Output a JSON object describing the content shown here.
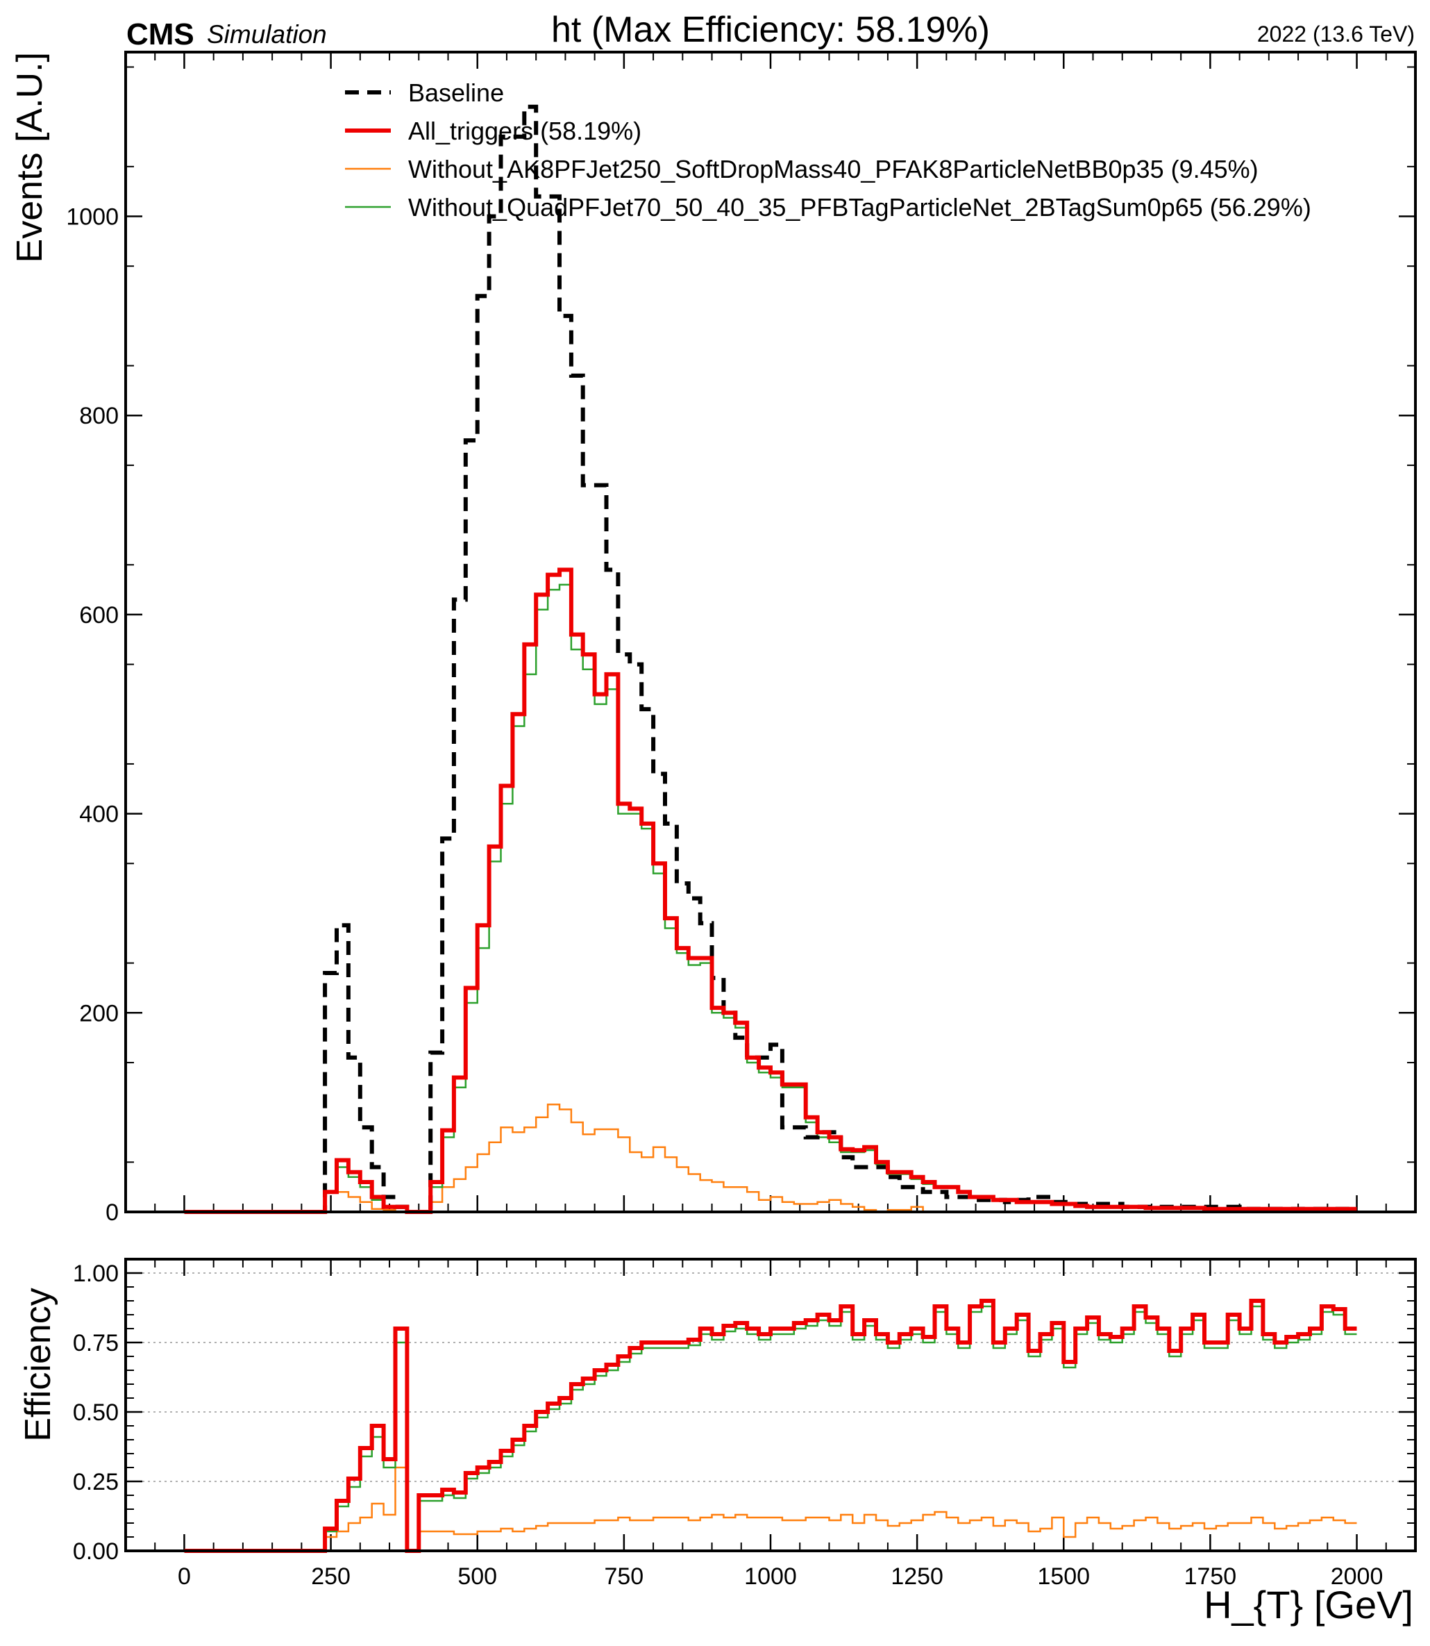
{
  "header": {
    "experiment": "CMS",
    "status": "Simulation",
    "title": "ht (Max Efficiency: 58.19%)",
    "lumi": "2022 (13.6 TeV)"
  },
  "chart_data": [
    {
      "type": "step-histogram",
      "panel": "top",
      "xlabel": "",
      "ylabel": "Events [A.U.]",
      "xlim": [
        -100,
        2100
      ],
      "ylim": [
        0,
        1165
      ],
      "yticks": [
        0,
        200,
        400,
        600,
        800,
        1000
      ],
      "legend_position": "top-center",
      "bin_edges_start": 0,
      "bin_width": 20,
      "series": [
        {
          "name": "Baseline",
          "color": "#000000",
          "style": "dashed",
          "values": [
            0,
            0,
            0,
            0,
            0,
            0,
            0,
            0,
            0,
            0,
            0,
            0,
            240,
            288,
            155,
            85,
            45,
            15,
            5,
            0,
            0,
            160,
            375,
            615,
            775,
            920,
            1000,
            1080,
            1080,
            1110,
            1020,
            1020,
            900,
            840,
            730,
            730,
            645,
            560,
            550,
            505,
            440,
            390,
            330,
            315,
            290,
            235,
            200,
            175,
            155,
            155,
            168,
            85,
            85,
            75,
            80,
            80,
            55,
            45,
            45,
            45,
            35,
            25,
            25,
            20,
            20,
            15,
            15,
            12,
            12,
            12,
            10,
            12,
            15,
            15,
            10,
            10,
            8,
            8,
            8,
            8,
            5,
            5,
            5,
            5,
            5,
            5,
            5,
            5,
            5,
            5,
            3,
            3,
            3,
            3,
            3,
            3,
            3,
            3,
            3,
            3
          ]
        },
        {
          "name": "All_triggers (58.19%)",
          "color": "#ee0000",
          "style": "solid-thick",
          "values": [
            0,
            0,
            0,
            0,
            0,
            0,
            0,
            0,
            0,
            0,
            0,
            0,
            20,
            52,
            40,
            30,
            15,
            5,
            5,
            0,
            0,
            30,
            82,
            135,
            225,
            288,
            367,
            428,
            500,
            570,
            620,
            640,
            645,
            580,
            560,
            520,
            540,
            410,
            405,
            390,
            350,
            295,
            265,
            255,
            255,
            205,
            200,
            190,
            155,
            145,
            140,
            128,
            128,
            95,
            80,
            75,
            63,
            62,
            65,
            50,
            40,
            40,
            35,
            30,
            25,
            25,
            20,
            15,
            15,
            12,
            12,
            10,
            10,
            10,
            8,
            8,
            6,
            5,
            5,
            5,
            5,
            5,
            4,
            4,
            4,
            4,
            4,
            3,
            3,
            3,
            3,
            3,
            3,
            3,
            3,
            3,
            3,
            3,
            3,
            3
          ]
        },
        {
          "name": "Without_AK8PFJet250_SoftDropMass40_PFAK8ParticleNetBB0p35 (9.45%)",
          "color": "#ff7f0e",
          "style": "solid-thin",
          "values": [
            0,
            0,
            0,
            0,
            0,
            0,
            0,
            0,
            0,
            0,
            0,
            0,
            20,
            20,
            15,
            10,
            3,
            2,
            0,
            0,
            0,
            10,
            25,
            33,
            45,
            58,
            70,
            85,
            80,
            85,
            95,
            108,
            103,
            90,
            78,
            83,
            83,
            75,
            60,
            55,
            65,
            55,
            45,
            38,
            32,
            30,
            25,
            25,
            20,
            12,
            15,
            10,
            8,
            8,
            10,
            12,
            8,
            5,
            2,
            0,
            2,
            2,
            5,
            0,
            0,
            0,
            0,
            0,
            0,
            0,
            0,
            0,
            0,
            0,
            0,
            0,
            0,
            0,
            0,
            0,
            0,
            0,
            0,
            0,
            0,
            0,
            0,
            0,
            0,
            0,
            0,
            0,
            0,
            0,
            0,
            0,
            0,
            0,
            0,
            0
          ]
        },
        {
          "name": "Without_QuadPFJet70_50_40_35_PFBTagParticleNet_2BTagSum0p65 (56.29%)",
          "color": "#2ca02c",
          "style": "solid-thin",
          "values": [
            0,
            0,
            0,
            0,
            0,
            0,
            0,
            0,
            0,
            0,
            0,
            0,
            20,
            45,
            35,
            25,
            12,
            5,
            5,
            0,
            0,
            25,
            75,
            125,
            210,
            265,
            352,
            410,
            488,
            540,
            605,
            625,
            630,
            565,
            545,
            510,
            525,
            400,
            400,
            385,
            340,
            285,
            260,
            248,
            250,
            200,
            195,
            185,
            150,
            140,
            135,
            125,
            125,
            90,
            75,
            70,
            60,
            60,
            62,
            48,
            38,
            38,
            33,
            28,
            24,
            24,
            20,
            15,
            15,
            12,
            12,
            10,
            10,
            10,
            8,
            8,
            6,
            5,
            5,
            5,
            5,
            5,
            4,
            4,
            4,
            4,
            4,
            3,
            3,
            3,
            3,
            3,
            3,
            3,
            3,
            3,
            3,
            3,
            3,
            3
          ]
        }
      ]
    },
    {
      "type": "step-histogram",
      "panel": "bottom",
      "xlabel": "H_{T} [GeV]",
      "ylabel": "Efficiency",
      "xlim": [
        -100,
        2100
      ],
      "ylim": [
        0,
        1.05
      ],
      "yticks": [
        "0.00",
        "0.25",
        "0.50",
        "0.75",
        "1.00"
      ],
      "xticks": [
        0,
        250,
        500,
        750,
        1000,
        1250,
        1500,
        1750,
        2000
      ],
      "grid": "horizontal-dotted",
      "bin_edges_start": 0,
      "bin_width": 20,
      "series": [
        {
          "name": "All_triggers (58.19%)",
          "color": "#ee0000",
          "style": "solid-thick",
          "values": [
            0,
            0,
            0,
            0,
            0,
            0,
            0,
            0,
            0,
            0,
            0,
            0,
            0.08,
            0.18,
            0.26,
            0.37,
            0.45,
            0.33,
            0.8,
            0,
            0.2,
            0.2,
            0.22,
            0.21,
            0.28,
            0.3,
            0.32,
            0.36,
            0.4,
            0.45,
            0.5,
            0.53,
            0.55,
            0.6,
            0.62,
            0.65,
            0.67,
            0.7,
            0.73,
            0.75,
            0.75,
            0.75,
            0.75,
            0.76,
            0.8,
            0.78,
            0.81,
            0.82,
            0.8,
            0.78,
            0.8,
            0.8,
            0.82,
            0.83,
            0.85,
            0.83,
            0.88,
            0.78,
            0.83,
            0.78,
            0.75,
            0.78,
            0.8,
            0.77,
            0.88,
            0.8,
            0.75,
            0.88,
            0.9,
            0.75,
            0.8,
            0.85,
            0.72,
            0.78,
            0.82,
            0.68,
            0.8,
            0.84,
            0.78,
            0.77,
            0.8,
            0.88,
            0.84,
            0.8,
            0.72,
            0.8,
            0.85,
            0.75,
            0.75,
            0.85,
            0.8,
            0.9,
            0.78,
            0.75,
            0.77,
            0.78,
            0.8,
            0.88,
            0.87,
            0.8
          ]
        },
        {
          "name": "Without_AK8PFJet250_SoftDropMass40_PFAK8ParticleNetBB0p35 (9.45%)",
          "color": "#ff7f0e",
          "style": "solid-thin",
          "values": [
            0,
            0,
            0,
            0,
            0,
            0,
            0,
            0,
            0,
            0,
            0,
            0,
            0.05,
            0.07,
            0.1,
            0.12,
            0.17,
            0.13,
            0.3,
            0,
            0.07,
            0.07,
            0.07,
            0.06,
            0.06,
            0.07,
            0.07,
            0.08,
            0.07,
            0.08,
            0.09,
            0.1,
            0.1,
            0.1,
            0.1,
            0.11,
            0.11,
            0.12,
            0.11,
            0.11,
            0.12,
            0.12,
            0.12,
            0.11,
            0.12,
            0.13,
            0.12,
            0.13,
            0.12,
            0.12,
            0.12,
            0.11,
            0.11,
            0.12,
            0.12,
            0.11,
            0.13,
            0.1,
            0.13,
            0.11,
            0.09,
            0.1,
            0.11,
            0.13,
            0.14,
            0.12,
            0.1,
            0.11,
            0.12,
            0.09,
            0.11,
            0.1,
            0.07,
            0.08,
            0.12,
            0.05,
            0.1,
            0.12,
            0.1,
            0.08,
            0.09,
            0.11,
            0.12,
            0.1,
            0.08,
            0.09,
            0.1,
            0.08,
            0.09,
            0.1,
            0.1,
            0.12,
            0.1,
            0.08,
            0.09,
            0.1,
            0.11,
            0.12,
            0.11,
            0.1
          ]
        },
        {
          "name": "Without_QuadPFJet70_50_40_35_PFBTagParticleNet_2BTagSum0p65 (56.29%)",
          "color": "#2ca02c",
          "style": "solid-thin",
          "values": [
            0,
            0,
            0,
            0,
            0,
            0,
            0,
            0,
            0,
            0,
            0,
            0,
            0.07,
            0.16,
            0.23,
            0.34,
            0.41,
            0.3,
            0.75,
            0,
            0.18,
            0.18,
            0.2,
            0.19,
            0.26,
            0.28,
            0.3,
            0.34,
            0.38,
            0.43,
            0.48,
            0.51,
            0.53,
            0.58,
            0.6,
            0.63,
            0.65,
            0.68,
            0.71,
            0.73,
            0.73,
            0.73,
            0.73,
            0.74,
            0.78,
            0.76,
            0.79,
            0.8,
            0.78,
            0.76,
            0.78,
            0.78,
            0.8,
            0.81,
            0.83,
            0.81,
            0.86,
            0.76,
            0.81,
            0.76,
            0.73,
            0.76,
            0.78,
            0.75,
            0.86,
            0.78,
            0.73,
            0.86,
            0.88,
            0.73,
            0.78,
            0.83,
            0.7,
            0.76,
            0.8,
            0.66,
            0.78,
            0.82,
            0.76,
            0.75,
            0.78,
            0.86,
            0.82,
            0.78,
            0.7,
            0.78,
            0.83,
            0.73,
            0.73,
            0.83,
            0.78,
            0.88,
            0.76,
            0.73,
            0.75,
            0.76,
            0.78,
            0.86,
            0.85,
            0.78
          ]
        }
      ]
    }
  ]
}
